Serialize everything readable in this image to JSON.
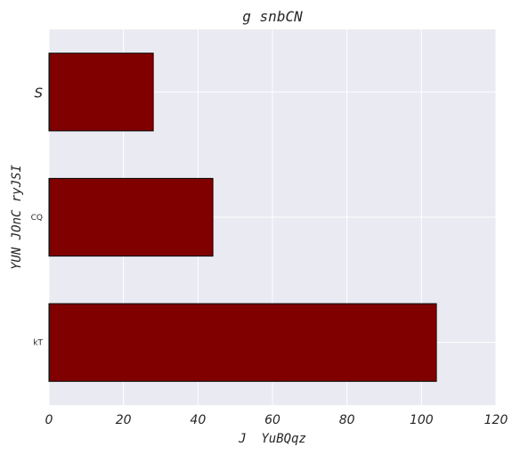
{
  "chart_data": {
    "type": "bar",
    "orientation": "horizontal",
    "title": "g snbCN",
    "xlabel": "J  YuBQqz",
    "ylabel": "YUN JOnC ryJSI",
    "categories": [
      "S",
      "CQ",
      "kT"
    ],
    "values": [
      28,
      44,
      104
    ],
    "xlim": [
      0,
      120
    ],
    "xticks": [
      0,
      20,
      40,
      60,
      80,
      100,
      120
    ],
    "grid": true,
    "legend": "none",
    "colors": {
      "bar": "#800000",
      "bar_edge": "#000000",
      "plot_background": "#EAEAF2",
      "grid": "#FFFFFF"
    }
  }
}
